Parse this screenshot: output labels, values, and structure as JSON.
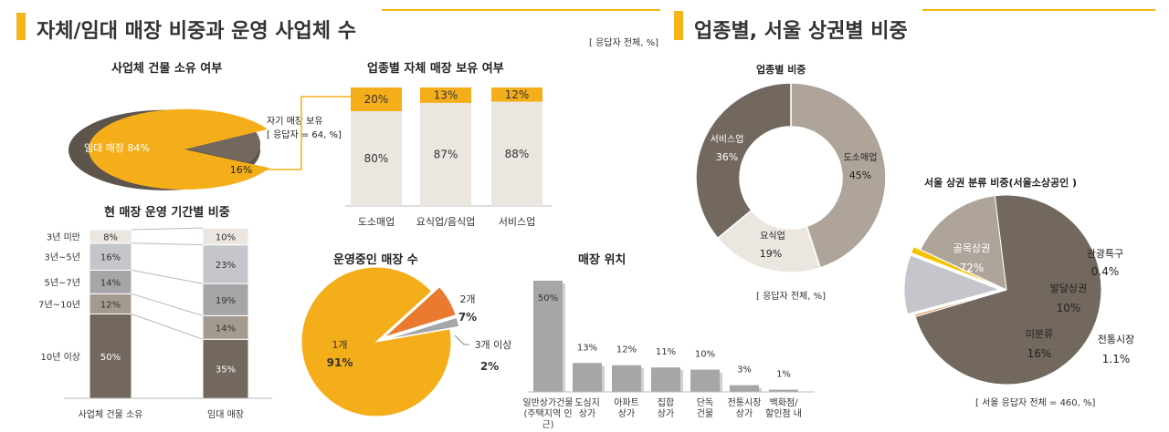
{
  "header_left": {
    "title": "자체/임대 매장 비중과 운영 사업체 수",
    "note": "[ 응답자 전체, %]"
  },
  "header_right": {
    "title": "업종별, 서울 상권별 비중"
  },
  "colors": {
    "brown": "#73685e",
    "taupe": "#aea49a",
    "light": "#ece6e0",
    "orange": "#f4ae1a",
    "dark_orange": "#ea7a30",
    "gray": "#a6a6a8",
    "light_gray": "#c4c6cb",
    "yellow": "#f5c400"
  },
  "chart_data": [
    {
      "id": "ownership",
      "type": "pie",
      "title": "사업체 건물 소유 여부",
      "slices": [
        {
          "label": "임대 매장",
          "value": 84
        },
        {
          "label": "16%",
          "value": 16
        }
      ],
      "callout": {
        "line1": "자기 매장 보유",
        "line2": "[ 응답자 = 64, %]"
      }
    },
    {
      "id": "by_industry_own",
      "type": "bar",
      "stacked": true,
      "title": "업종별  자체 매장 보유 여부",
      "categories": [
        "도소매업",
        "요식업/음식업",
        "서비스업"
      ],
      "series": [
        {
          "values": [
            80,
            87,
            88
          ]
        },
        {
          "values": [
            20,
            13,
            12
          ]
        }
      ]
    },
    {
      "id": "period",
      "type": "bar",
      "stacked": true,
      "title": "현 매장 운영 기간별 비중",
      "categories": [
        "사업체 건물 소유",
        "임대 매장"
      ],
      "series": [
        {
          "name": "10년 이상",
          "values": [
            50,
            35
          ]
        },
        {
          "name": "7년~10년",
          "values": [
            12,
            14
          ]
        },
        {
          "name": "5년~7년",
          "values": [
            14,
            19
          ]
        },
        {
          "name": "3년~5년",
          "values": [
            16,
            23
          ]
        },
        {
          "name": "3년 미만",
          "values": [
            8,
            10
          ]
        }
      ]
    },
    {
      "id": "store_count",
      "type": "pie",
      "title": "운영중인 매장 수",
      "slices": [
        {
          "label": "1개",
          "value": 91
        },
        {
          "label": "2개",
          "value": 7
        },
        {
          "label": "3개 이상",
          "value": 2
        }
      ]
    },
    {
      "id": "location",
      "type": "bar",
      "title": "매장 위치",
      "categories": [
        "일반상가건물\n(주택지역 인\n근)",
        "도심지\n상가",
        "아파트\n상가",
        "집합\n상가",
        "단독\n건물",
        "전통시장\n상가",
        "백화점/\n할인점 내"
      ],
      "values": [
        50,
        13,
        12,
        11,
        10,
        3,
        1
      ]
    },
    {
      "id": "industry",
      "type": "pie",
      "donut": true,
      "title": "업종별 비중",
      "slices": [
        {
          "label": "도소매업",
          "value": 45
        },
        {
          "label": "요식업",
          "value": 19
        },
        {
          "label": "서비스업",
          "value": 36
        }
      ],
      "note": "[ 응답자 전체, %]"
    },
    {
      "id": "seoul",
      "type": "pie",
      "title": "서울 상권 분류 비중(서울소상공인 )",
      "slices": [
        {
          "label": "골목상권",
          "value": 72
        },
        {
          "label": "관광특구",
          "value": 0.4
        },
        {
          "label": "발달상권",
          "value": 10
        },
        {
          "label": "전통시장",
          "value": 1.1
        },
        {
          "label": "미분류",
          "value": 16
        }
      ],
      "note": "[ 서울 응답자 전체 = 460, %]"
    }
  ]
}
